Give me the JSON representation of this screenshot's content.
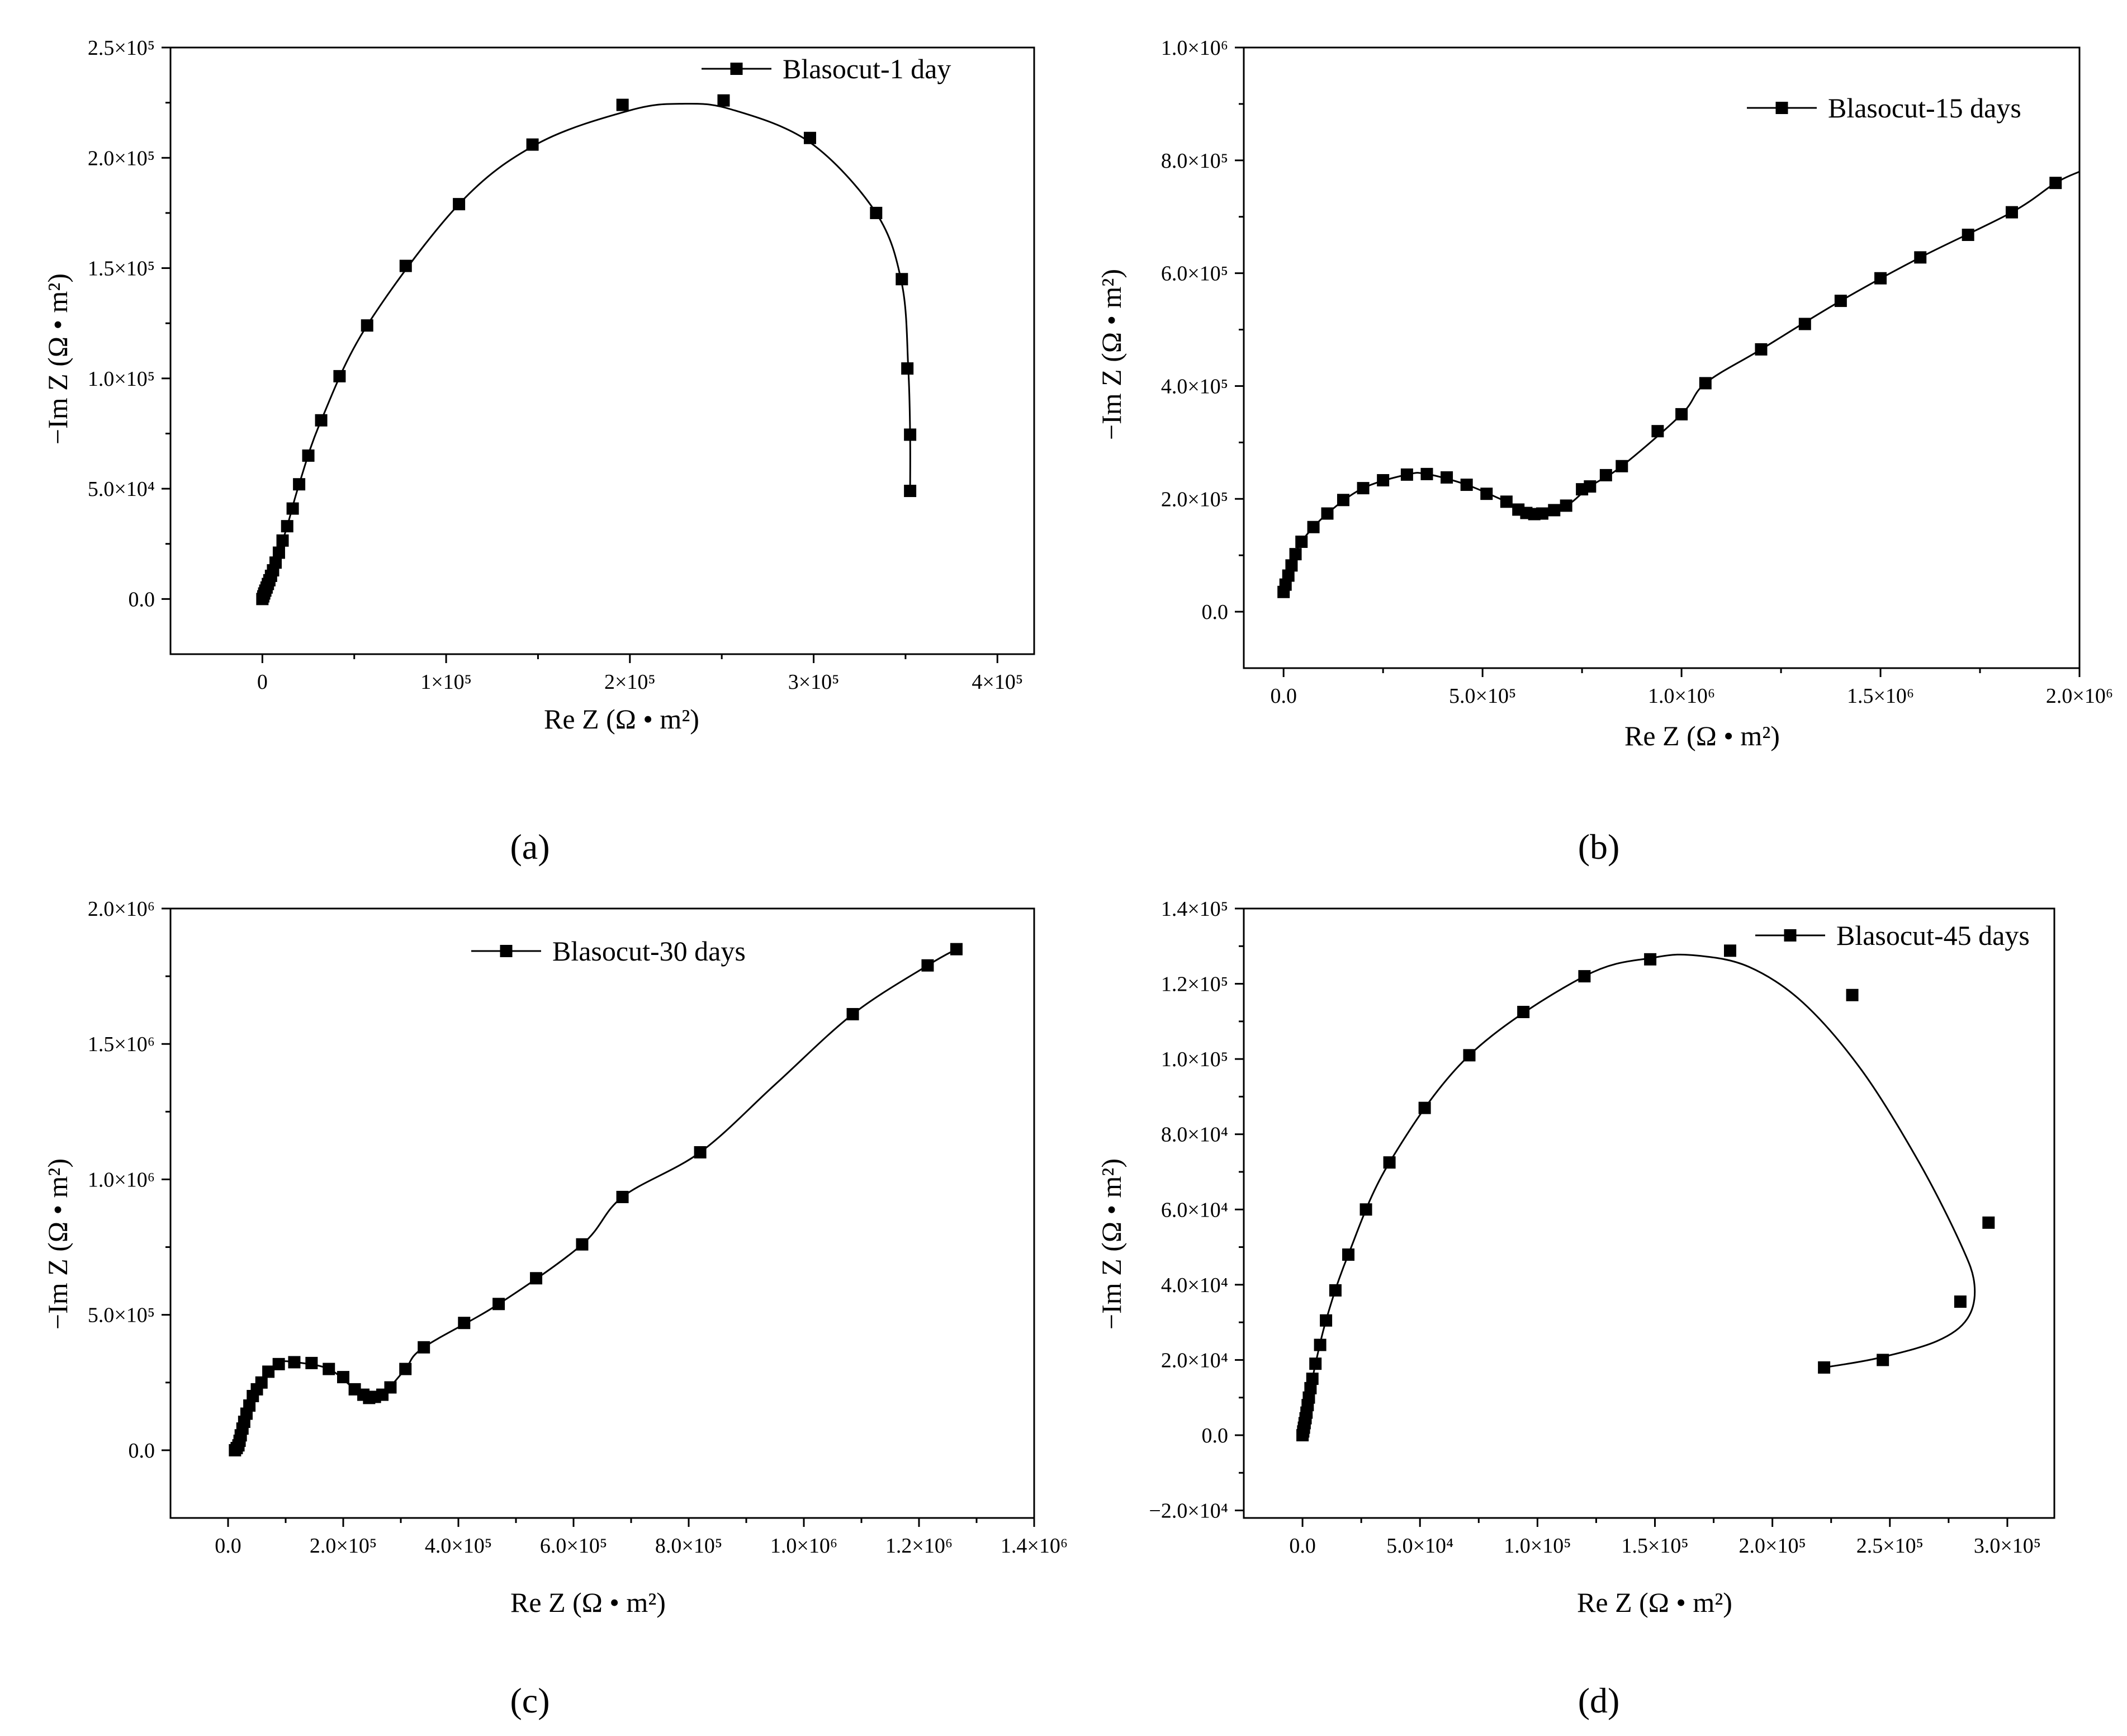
{
  "chart_data": [
    {
      "type": "scatter",
      "panel_label": "(a)",
      "legend": "Blasocut-1 day",
      "xlabel": "Re Z (Ω • m²)",
      "ylabel": "−Im Z (Ω • m²)",
      "xlim": [
        -50000,
        420000
      ],
      "ylim": [
        -25000,
        250000
      ],
      "xticks": [
        0,
        100000,
        200000,
        300000,
        400000
      ],
      "xtick_labels": [
        "0",
        "1×10⁵",
        "2×10⁵",
        "3×10⁵",
        "4×10⁵"
      ],
      "yticks": [
        0,
        50000,
        100000,
        150000,
        200000,
        250000
      ],
      "ytick_labels": [
        "0.0",
        "5.0×10⁴",
        "1.0×10⁵",
        "1.5×10⁵",
        "2.0×10⁵",
        "2.5×10⁵"
      ],
      "points": [
        [
          0,
          0
        ],
        [
          500,
          1200
        ],
        [
          1000,
          2500
        ],
        [
          1600,
          3800
        ],
        [
          2300,
          5200
        ],
        [
          3000,
          6800
        ],
        [
          3800,
          8500
        ],
        [
          4700,
          10500
        ],
        [
          5800,
          13000
        ],
        [
          7200,
          16500
        ],
        [
          9000,
          21000
        ],
        [
          11000,
          26500
        ],
        [
          13500,
          33000
        ],
        [
          16500,
          41000
        ],
        [
          20000,
          52000
        ],
        [
          25000,
          65000
        ],
        [
          32000,
          81000
        ],
        [
          42000,
          101000
        ],
        [
          57000,
          124000
        ],
        [
          78000,
          151000
        ],
        [
          107000,
          179000
        ],
        [
          147000,
          206000
        ],
        [
          196000,
          224000
        ],
        [
          251000,
          226000
        ],
        [
          298000,
          209000
        ],
        [
          334000,
          175000
        ],
        [
          348000,
          145000
        ],
        [
          351000,
          104500
        ],
        [
          352500,
          74500
        ],
        [
          352500,
          49000
        ]
      ],
      "curve": [
        [
          0,
          0
        ],
        [
          3000,
          6800
        ],
        [
          7200,
          16500
        ],
        [
          13500,
          33000
        ],
        [
          20000,
          52000
        ],
        [
          32000,
          81000
        ],
        [
          57000,
          124000
        ],
        [
          107000,
          179000
        ],
        [
          150000,
          206500
        ],
        [
          200000,
          221500
        ],
        [
          228000,
          224500
        ],
        [
          255000,
          222000
        ],
        [
          298000,
          207000
        ],
        [
          334000,
          175000
        ],
        [
          348000,
          143000
        ],
        [
          351500,
          104500
        ],
        [
          352500,
          74500
        ],
        [
          352500,
          49000
        ]
      ]
    },
    {
      "type": "scatter",
      "panel_label": "(b)",
      "legend": "Blasocut-15 days",
      "xlabel": "Re Z (Ω • m²)",
      "ylabel": "−Im Z (Ω • m²)",
      "xlim": [
        -100000,
        2000000
      ],
      "ylim": [
        -100000,
        1000000
      ],
      "xticks": [
        0,
        500000,
        1000000,
        1500000,
        2000000
      ],
      "xtick_labels": [
        "0.0",
        "5.0×10⁵",
        "1.0×10⁶",
        "1.5×10⁶",
        "2.0×10⁶"
      ],
      "yticks": [
        0,
        200000,
        400000,
        600000,
        800000,
        1000000
      ],
      "ytick_labels": [
        "0.0",
        "2.0×10⁵",
        "4.0×10⁵",
        "6.0×10⁵",
        "8.0×10⁵",
        "1.0×10⁶"
      ],
      "points": [
        [
          0,
          35000
        ],
        [
          5000,
          48000
        ],
        [
          12000,
          64000
        ],
        [
          20000,
          82000
        ],
        [
          30000,
          102000
        ],
        [
          45000,
          124000
        ],
        [
          75000,
          150000
        ],
        [
          110000,
          174000
        ],
        [
          150000,
          198000
        ],
        [
          200000,
          219000
        ],
        [
          250000,
          233000
        ],
        [
          310000,
          243000
        ],
        [
          360000,
          244000
        ],
        [
          410000,
          238000
        ],
        [
          460000,
          225000
        ],
        [
          510000,
          209000
        ],
        [
          560000,
          195000
        ],
        [
          590000,
          181000
        ],
        [
          610000,
          175000
        ],
        [
          630000,
          173000
        ],
        [
          650000,
          174000
        ],
        [
          680000,
          180000
        ],
        [
          710000,
          188000
        ],
        [
          750000,
          217000
        ],
        [
          770000,
          222000
        ],
        [
          810000,
          242000
        ],
        [
          850000,
          258000
        ],
        [
          940000,
          320000
        ],
        [
          1000000,
          350000
        ],
        [
          1060000,
          405000
        ],
        [
          1200000,
          465000
        ],
        [
          1310000,
          510000
        ],
        [
          1400000,
          551000
        ],
        [
          1500000,
          591000
        ],
        [
          1600000,
          628000
        ],
        [
          1720000,
          668000
        ],
        [
          1830000,
          708000
        ],
        [
          1940000,
          760000
        ]
      ],
      "curve": [
        [
          0,
          35000
        ],
        [
          20000,
          82000
        ],
        [
          45000,
          124000
        ],
        [
          110000,
          174000
        ],
        [
          200000,
          219000
        ],
        [
          310000,
          243000
        ],
        [
          360000,
          244000
        ],
        [
          460000,
          225000
        ],
        [
          560000,
          195000
        ],
        [
          630000,
          173000
        ],
        [
          710000,
          188000
        ],
        [
          770000,
          222000
        ],
        [
          850000,
          258000
        ],
        [
          1000000,
          350000
        ],
        [
          1060000,
          405000
        ],
        [
          1200000,
          465000
        ],
        [
          1400000,
          551000
        ],
        [
          1600000,
          628000
        ],
        [
          1830000,
          708000
        ],
        [
          1940000,
          760000
        ],
        [
          2000000,
          780000
        ]
      ]
    },
    {
      "type": "scatter",
      "panel_label": "(c)",
      "legend": "Blasocut-30 days",
      "xlabel": "Re Z (Ω • m²)",
      "ylabel": "−Im Z (Ω • m²)",
      "xlim": [
        -100000,
        1400000
      ],
      "ylim": [
        -250000,
        2000000
      ],
      "xticks": [
        0,
        200000,
        400000,
        600000,
        800000,
        1000000,
        1200000,
        1400000
      ],
      "xtick_labels": [
        "0.0",
        "2.0×10⁵",
        "4.0×10⁵",
        "6.0×10⁵",
        "8.0×10⁵",
        "1.0×10⁶",
        "1.2×10⁶",
        "1.4×10⁶"
      ],
      "yticks": [
        0,
        500000,
        1000000,
        1500000,
        2000000
      ],
      "ytick_labels": [
        "0.0",
        "5.0×10⁵",
        "1.0×10⁶",
        "1.5×10⁶",
        "2.0×10⁶"
      ],
      "points": [
        [
          12000,
          0
        ],
        [
          15000,
          8000
        ],
        [
          18000,
          18000
        ],
        [
          20000,
          35000
        ],
        [
          22000,
          55000
        ],
        [
          25000,
          80000
        ],
        [
          28000,
          105000
        ],
        [
          32000,
          135000
        ],
        [
          37000,
          165000
        ],
        [
          43000,
          200000
        ],
        [
          50000,
          225000
        ],
        [
          58000,
          250000
        ],
        [
          70000,
          290000
        ],
        [
          88000,
          318000
        ],
        [
          115000,
          325000
        ],
        [
          145000,
          322000
        ],
        [
          175000,
          300000
        ],
        [
          200000,
          270000
        ],
        [
          220000,
          225000
        ],
        [
          235000,
          205000
        ],
        [
          245000,
          193000
        ],
        [
          255000,
          197000
        ],
        [
          268000,
          205000
        ],
        [
          282000,
          232000
        ],
        [
          308000,
          300000
        ],
        [
          340000,
          380000
        ],
        [
          410000,
          470000
        ],
        [
          470000,
          540000
        ],
        [
          535000,
          635000
        ],
        [
          615000,
          760000
        ],
        [
          685000,
          935000
        ],
        [
          820000,
          1100000
        ],
        [
          1085000,
          1610000
        ],
        [
          1215000,
          1790000
        ],
        [
          1265000,
          1850000
        ]
      ],
      "curve": [
        [
          12000,
          0
        ],
        [
          20000,
          35000
        ],
        [
          32000,
          135000
        ],
        [
          50000,
          225000
        ],
        [
          88000,
          318000
        ],
        [
          115000,
          325000
        ],
        [
          175000,
          300000
        ],
        [
          220000,
          225000
        ],
        [
          245000,
          193000
        ],
        [
          268000,
          205000
        ],
        [
          308000,
          300000
        ],
        [
          340000,
          380000
        ],
        [
          470000,
          540000
        ],
        [
          615000,
          760000
        ],
        [
          685000,
          935000
        ],
        [
          820000,
          1100000
        ],
        [
          950000,
          1350000
        ],
        [
          1085000,
          1610000
        ],
        [
          1215000,
          1790000
        ],
        [
          1265000,
          1850000
        ]
      ]
    },
    {
      "type": "scatter",
      "panel_label": "(d)",
      "legend": "Blasocut-45 days",
      "xlabel": "Re Z (Ω • m²)",
      "ylabel": "−Im Z (Ω • m²)",
      "xlim": [
        -25000,
        320000
      ],
      "ylim": [
        -22000,
        140000
      ],
      "xticks": [
        0,
        50000,
        100000,
        150000,
        200000,
        250000,
        300000
      ],
      "xtick_labels": [
        "0.0",
        "5.0×10⁴",
        "1.0×10⁵",
        "1.5×10⁵",
        "2.0×10⁵",
        "2.5×10⁵",
        "3.0×10⁵"
      ],
      "yticks": [
        -20000,
        0,
        20000,
        40000,
        60000,
        80000,
        100000,
        120000,
        140000
      ],
      "ytick_labels": [
        "−2.0×10⁴",
        "0.0",
        "2.0×10⁴",
        "4.0×10⁴",
        "6.0×10⁴",
        "8.0×10⁴",
        "1.0×10⁵",
        "1.2×10⁵",
        "1.4×10⁵"
      ],
      "points": [
        [
          0,
          0
        ],
        [
          300,
          1000
        ],
        [
          600,
          2000
        ],
        [
          900,
          3200
        ],
        [
          1300,
          4500
        ],
        [
          1700,
          6000
        ],
        [
          2200,
          8000
        ],
        [
          2700,
          10000
        ],
        [
          3400,
          12500
        ],
        [
          4200,
          15000
        ],
        [
          5500,
          19000
        ],
        [
          7500,
          24000
        ],
        [
          10000,
          30500
        ],
        [
          14000,
          38500
        ],
        [
          19500,
          48000
        ],
        [
          27000,
          60000
        ],
        [
          37000,
          72500
        ],
        [
          52000,
          87000
        ],
        [
          71000,
          101000
        ],
        [
          94000,
          112500
        ],
        [
          120000,
          122000
        ],
        [
          148000,
          126500
        ],
        [
          182000,
          128800
        ],
        [
          234000,
          117000
        ],
        [
          292000,
          56500
        ],
        [
          280000,
          35500
        ],
        [
          247000,
          20000
        ],
        [
          222000,
          18000
        ]
      ],
      "curve": [
        [
          0,
          0
        ],
        [
          1700,
          6000
        ],
        [
          4200,
          15000
        ],
        [
          10000,
          30500
        ],
        [
          19500,
          48000
        ],
        [
          37000,
          72500
        ],
        [
          71000,
          101000
        ],
        [
          120000,
          122000
        ],
        [
          150000,
          127000
        ],
        [
          168000,
          127500
        ],
        [
          190000,
          124500
        ],
        [
          213000,
          115000
        ],
        [
          238000,
          97000
        ],
        [
          262000,
          73000
        ],
        [
          280000,
          51000
        ],
        [
          286000,
          40000
        ],
        [
          283000,
          31000
        ],
        [
          270000,
          25000
        ],
        [
          245000,
          20500
        ],
        [
          222000,
          18000
        ]
      ]
    }
  ]
}
